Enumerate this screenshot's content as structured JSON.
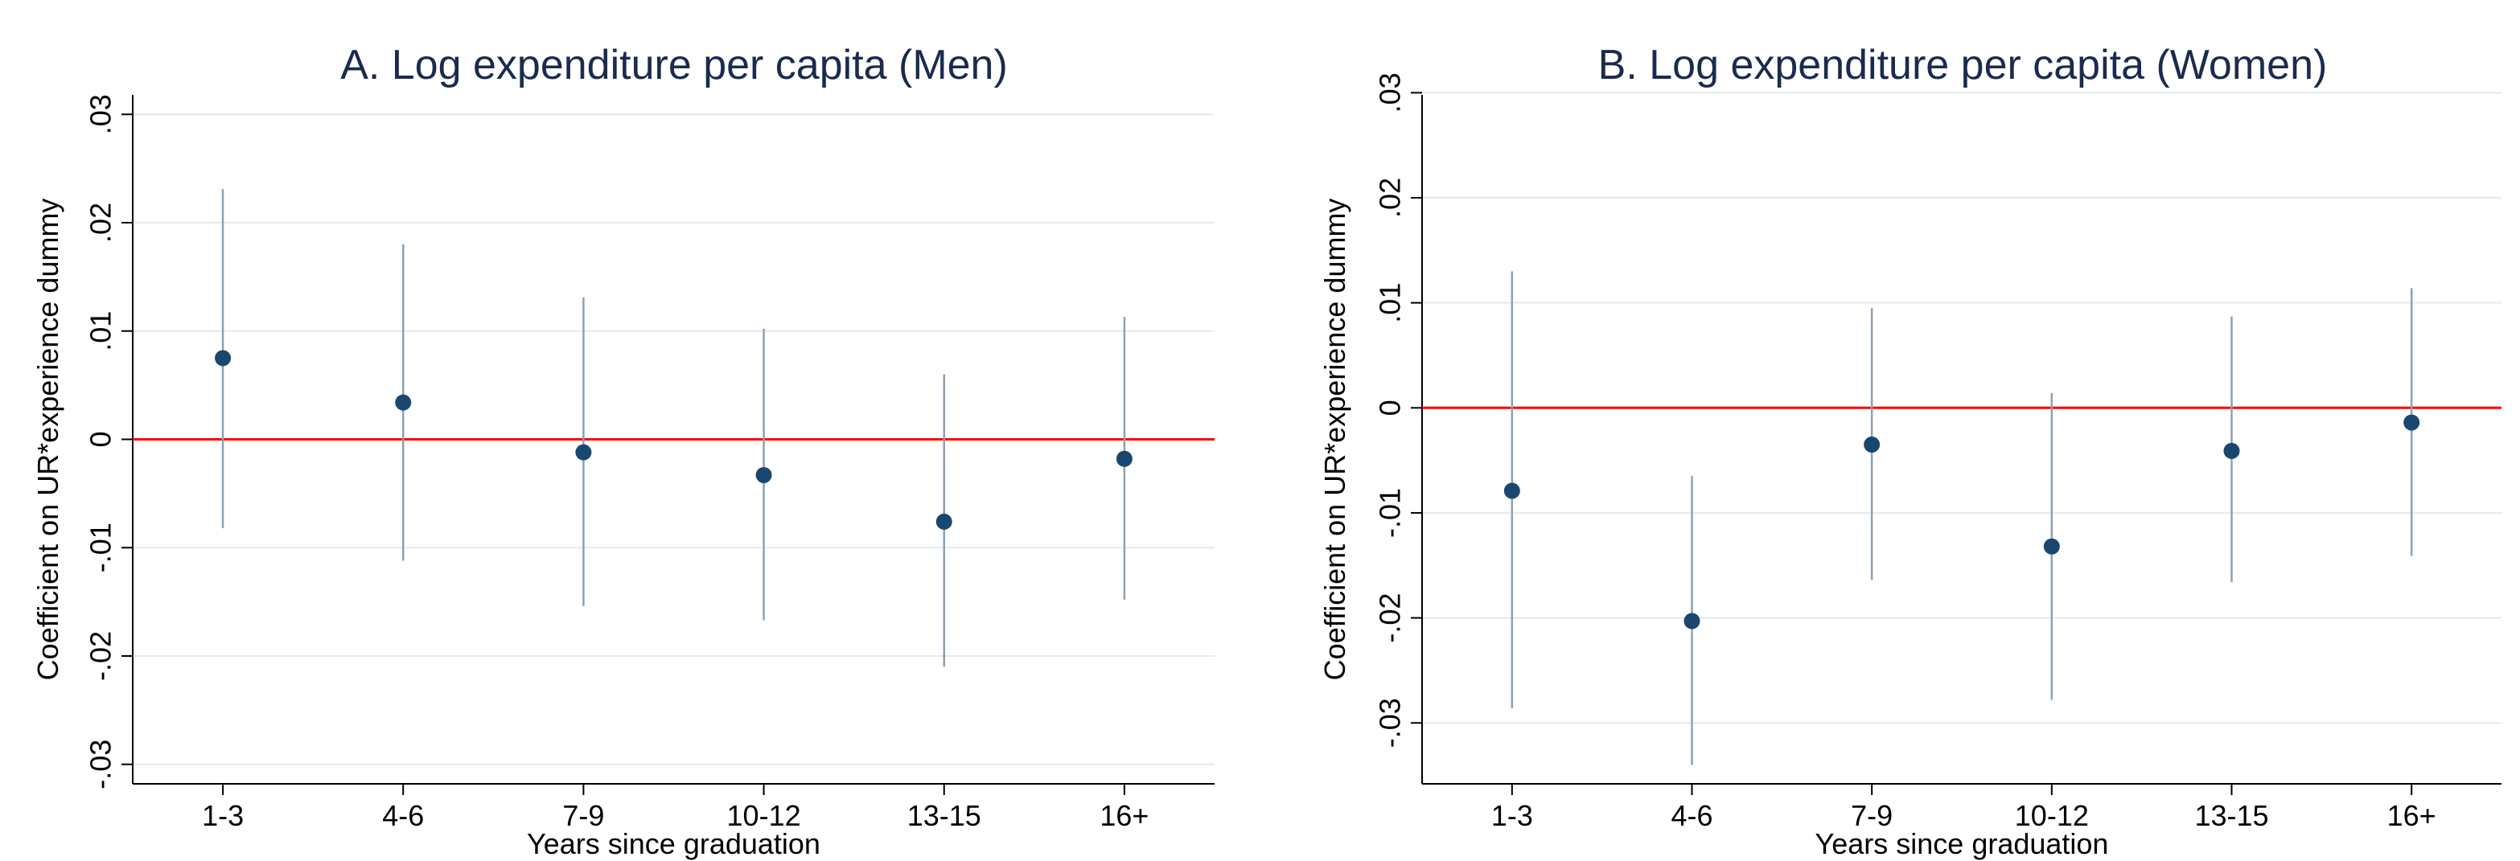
{
  "chart_data": [
    {
      "type": "scatter",
      "subtype": "coefficient-plot-with-ci",
      "title": "A. Log expenditure per capita (Men)",
      "xlabel": "Years since graduation",
      "ylabel": "Coefficient on UR*experience dummy",
      "categories": [
        "1-3",
        "4-6",
        "7-9",
        "10-12",
        "13-15",
        "16+"
      ],
      "estimates": [
        0.0075,
        0.0034,
        -0.0012,
        -0.0033,
        -0.0076,
        -0.0018
      ],
      "ci_lower": [
        -0.0082,
        -0.0112,
        -0.0154,
        -0.0167,
        -0.021,
        -0.0148
      ],
      "ci_upper": [
        0.0231,
        0.018,
        0.0131,
        0.0102,
        0.006,
        0.0113
      ],
      "ylim": [
        -0.0318,
        0.0318
      ],
      "yticks": [
        0.03,
        0.02,
        0.01,
        0,
        -0.01,
        -0.02,
        -0.03
      ],
      "ytick_labels": [
        ".03",
        ".02",
        ".01",
        "0",
        "-.01",
        "-.02",
        "-.03"
      ],
      "reference_line": 0,
      "grid": true,
      "colors": {
        "marker": "#1a476f",
        "ci": "#8ba1b5",
        "reference": "#ff0000",
        "grid": "#e6eaee",
        "title": "#1a2b4f"
      }
    },
    {
      "type": "scatter",
      "subtype": "coefficient-plot-with-ci",
      "title": "B. Log expenditure per capita (Women)",
      "xlabel": "Years since graduation",
      "ylabel": "Coefficient on UR*experience dummy",
      "categories": [
        "1-3",
        "4-6",
        "7-9",
        "10-12",
        "13-15",
        "16+"
      ],
      "estimates": [
        -0.0079,
        -0.0203,
        -0.0035,
        -0.0132,
        -0.0041,
        -0.0014
      ],
      "ci_lower": [
        -0.0286,
        -0.034,
        -0.0164,
        -0.0278,
        -0.0166,
        -0.0141
      ],
      "ci_upper": [
        0.013,
        -0.0065,
        0.0095,
        0.0014,
        0.0087,
        0.0114
      ],
      "ylim": [
        -0.0358,
        0.0298
      ],
      "yticks": [
        0.03,
        0.02,
        0.01,
        0,
        -0.01,
        -0.02,
        -0.03
      ],
      "ytick_labels": [
        ".03",
        ".02",
        ".01",
        "0",
        "-.01",
        "-.02",
        "-.03"
      ],
      "reference_line": 0,
      "grid": true,
      "colors": {
        "marker": "#1a476f",
        "ci": "#8ba1b5",
        "reference": "#ff0000",
        "grid": "#e6eaee",
        "title": "#1a2b4f"
      }
    }
  ]
}
